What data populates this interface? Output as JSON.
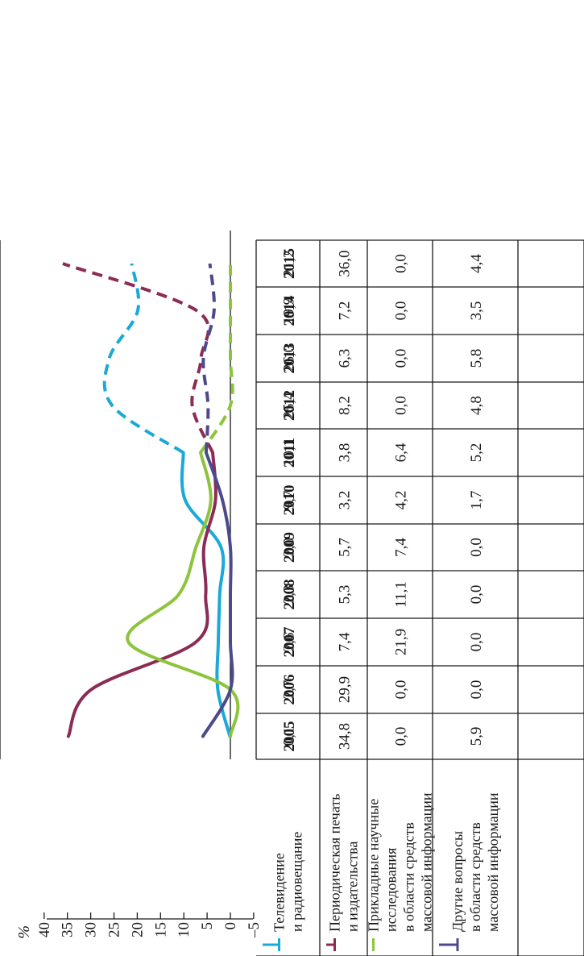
{
  "chart_data": {
    "type": "line",
    "ylabel": "%",
    "yticks": [
      "40",
      "35",
      "30",
      "25",
      "20",
      "15",
      "10",
      "5",
      "0",
      "–5"
    ],
    "ylim": [
      -5,
      40
    ],
    "x": [
      "2005",
      "2006",
      "2007",
      "2008",
      "2009",
      "2010",
      "2011",
      "2012",
      "2013",
      "2014",
      "2015"
    ],
    "series": [
      {
        "name": "Телевидение и радиовещание",
        "name_lines": [
          "Телевидение",
          "и радиовещание"
        ],
        "color": "#1aa9d8",
        "values": [
          0.1,
          2.7,
          2.6,
          2.3,
          2.0,
          9.7,
          10.1,
          25.4,
          26.0,
          19.9,
          21.2
        ],
        "cells": [
          "0,1",
          "2,7",
          "2,6",
          "2,3",
          "2,0",
          "9,7",
          "10,1",
          "25,4",
          "26,0",
          "19,9",
          "21,2"
        ]
      },
      {
        "name": "Периодическая печать и издательства",
        "name_lines": [
          "Периодическая печать",
          "и издательства"
        ],
        "color": "#8b2c55",
        "values": [
          34.8,
          29.9,
          7.4,
          5.3,
          5.7,
          3.2,
          3.8,
          8.2,
          6.3,
          7.2,
          36.0
        ],
        "cells": [
          "34,8",
          "29,9",
          "7,4",
          "5,3",
          "5,7",
          "3,2",
          "3,8",
          "8,2",
          "6,3",
          "7,2",
          "36,0"
        ]
      },
      {
        "name": "Прикладные научные исследования в области средств массовой информации",
        "name_lines": [
          "Прикладные научные",
          "исследования",
          "в области средств",
          "массовой информации"
        ],
        "color": "#8cc43c",
        "values": [
          0.0,
          0.0,
          21.9,
          11.1,
          7.4,
          4.2,
          6.4,
          0.0,
          0.0,
          0.0,
          0.0
        ],
        "cells": [
          "0,0",
          "0,0",
          "21,9",
          "11,1",
          "7,4",
          "4,2",
          "6,4",
          "0,0",
          "0,0",
          "0,0",
          "0,0"
        ]
      },
      {
        "name": "Другие вопросы в области средств массовой информации",
        "name_lines": [
          "Другие вопросы",
          "в области средств",
          "массовой информации"
        ],
        "color": "#4c4a8c",
        "values": [
          5.9,
          0.0,
          0.0,
          0.0,
          0.0,
          1.7,
          5.2,
          4.8,
          5.8,
          3.5,
          4.4
        ],
        "cells": [
          "5,9",
          "0,0",
          "0,0",
          "0,0",
          "0,0",
          "1,7",
          "5,2",
          "4,8",
          "5,8",
          "3,5",
          "4,4"
        ]
      }
    ],
    "solid_through": "2011",
    "dashed_from": "2011",
    "grid": false,
    "legend": "in table"
  }
}
